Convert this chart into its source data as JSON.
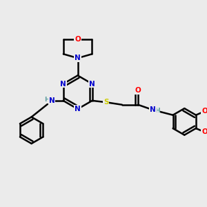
{
  "bg_color": "#ebebeb",
  "atom_colors": {
    "C": "#000000",
    "N": "#0000cc",
    "O": "#ff0000",
    "S": "#cccc00",
    "H": "#5f9ea0"
  },
  "bond_color": "#000000",
  "bond_width": 1.8,
  "figsize": [
    3.0,
    3.0
  ],
  "dpi": 100,
  "xlim": [
    0,
    10
  ],
  "ylim": [
    0,
    10
  ]
}
